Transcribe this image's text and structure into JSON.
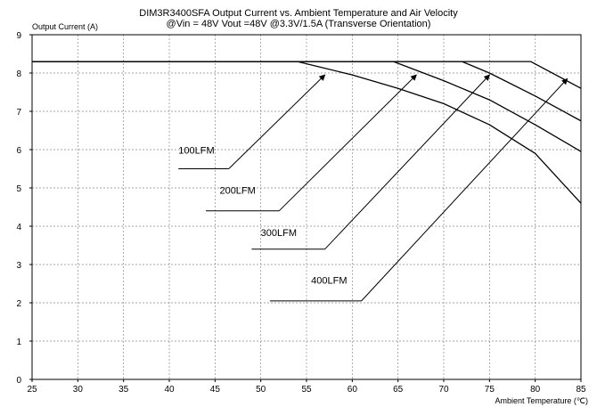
{
  "chart_data": {
    "type": "line",
    "title": "DIM3R3400SFA Output Current vs. Ambient Temperature and Air Velocity",
    "subtitle": "@Vin = 48V Vout =48V @3.3V/1.5A (Transverse Orientation)",
    "ylabel": "Output Current (A)",
    "xlabel": "Ambient Temperature (℃)",
    "xlim": [
      25,
      85
    ],
    "ylim": [
      0,
      9
    ],
    "x_ticks": [
      25,
      30,
      35,
      40,
      45,
      50,
      55,
      60,
      65,
      70,
      75,
      80,
      85
    ],
    "y_ticks": [
      0,
      1,
      2,
      3,
      4,
      5,
      6,
      7,
      8,
      9
    ],
    "grid": true,
    "series": [
      {
        "name": "100LFM",
        "x": [
          25,
          54,
          60,
          65,
          70,
          75,
          80,
          85
        ],
        "y": [
          8.3,
          8.3,
          7.95,
          7.6,
          7.2,
          6.65,
          5.9,
          4.6
        ]
      },
      {
        "name": "200LFM",
        "x": [
          25,
          64.5,
          70,
          75,
          80,
          85
        ],
        "y": [
          8.3,
          8.3,
          7.8,
          7.3,
          6.65,
          5.95
        ]
      },
      {
        "name": "300LFM",
        "x": [
          25,
          72,
          75,
          80,
          85
        ],
        "y": [
          8.3,
          8.3,
          8.0,
          7.4,
          6.75
        ]
      },
      {
        "name": "400LFM",
        "x": [
          25,
          79.5,
          85
        ],
        "y": [
          8.3,
          8.3,
          7.6
        ]
      }
    ],
    "annotations": [
      {
        "text": "100LFM",
        "label_x": 41,
        "label_y": 5.9,
        "shelf_from": [
          41,
          5.5
        ],
        "shelf_to": [
          46.5,
          5.5
        ],
        "arrow_to": [
          57,
          7.95
        ]
      },
      {
        "text": "200LFM",
        "label_x": 45.5,
        "label_y": 4.85,
        "shelf_from": [
          44,
          4.4
        ],
        "shelf_to": [
          52,
          4.4
        ],
        "arrow_to": [
          67,
          7.95
        ]
      },
      {
        "text": "300LFM",
        "label_x": 50,
        "label_y": 3.75,
        "shelf_from": [
          49,
          3.4
        ],
        "shelf_to": [
          57,
          3.4
        ],
        "arrow_to": [
          75,
          7.95
        ]
      },
      {
        "text": "400LFM",
        "label_x": 55.5,
        "label_y": 2.5,
        "shelf_from": [
          51,
          2.05
        ],
        "shelf_to": [
          61,
          2.05
        ],
        "arrow_to": [
          83.5,
          7.85
        ]
      }
    ]
  }
}
